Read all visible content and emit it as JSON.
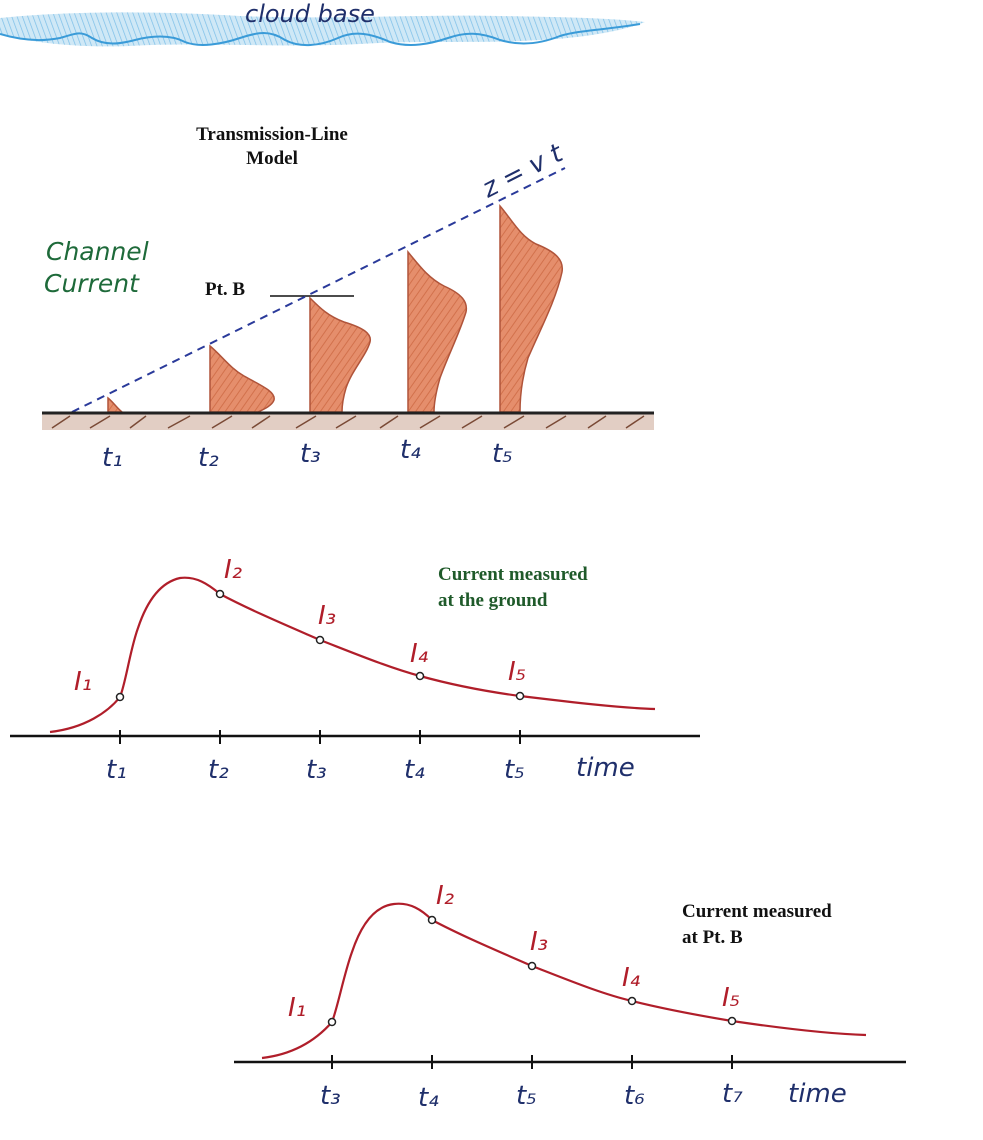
{
  "colors": {
    "cloud": "#3a9bd8",
    "ink": "#1f2f6b",
    "channel_fill": "#e58e6c",
    "channel_stroke": "#b0543a",
    "ground": "#8a5a44",
    "curve": "#b01e2a",
    "axis": "#111111",
    "green_text": "#1f5a2a",
    "green_hand": "#1e6a3a",
    "dash": "#2a3a9a"
  },
  "cloud": {
    "label": "cloud base"
  },
  "model": {
    "title_line1": "Transmission-Line",
    "title_line2": "Model",
    "channel_label_line1": "Channel",
    "channel_label_line2": "Current",
    "pt_b_label": "Pt. B",
    "z_vt_label": "z = v t",
    "time_labels": [
      "t₁",
      "t₂",
      "t₃",
      "t₄",
      "t₅"
    ]
  },
  "ground_plot": {
    "caption_line1": "Current measured",
    "caption_line2": "at the ground",
    "point_labels": [
      "I₁",
      "I₂",
      "I₃",
      "I₄",
      "I₅"
    ],
    "time_labels": [
      "t₁",
      "t₂",
      "t₃",
      "t₄",
      "t₅"
    ],
    "axis_label": "time"
  },
  "ptb_plot": {
    "caption_line1": "Current measured",
    "caption_line2": "at Pt. B",
    "point_labels": [
      "I₁",
      "I₂",
      "I₃",
      "I₄",
      "I₅"
    ],
    "time_labels": [
      "t₃",
      "t₄",
      "t₅",
      "t₆",
      "t₇"
    ],
    "axis_label": "time"
  }
}
